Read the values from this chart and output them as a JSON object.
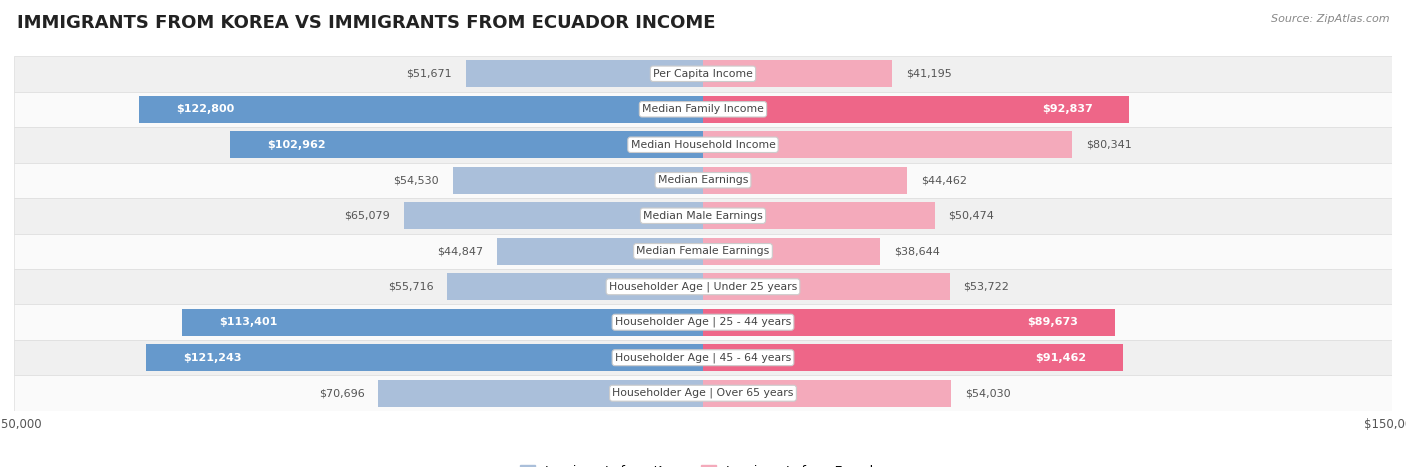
{
  "title": "IMMIGRANTS FROM KOREA VS IMMIGRANTS FROM ECUADOR INCOME",
  "source": "Source: ZipAtlas.com",
  "categories": [
    "Per Capita Income",
    "Median Family Income",
    "Median Household Income",
    "Median Earnings",
    "Median Male Earnings",
    "Median Female Earnings",
    "Householder Age | Under 25 years",
    "Householder Age | 25 - 44 years",
    "Householder Age | 45 - 64 years",
    "Householder Age | Over 65 years"
  ],
  "korea_values": [
    51671,
    122800,
    102962,
    54530,
    65079,
    44847,
    55716,
    113401,
    121243,
    70696
  ],
  "ecuador_values": [
    41195,
    92837,
    80341,
    44462,
    50474,
    38644,
    53722,
    89673,
    91462,
    54030
  ],
  "korea_color_large": "#6699CC",
  "korea_color_small": "#AABFDA",
  "ecuador_color_large": "#EE6688",
  "ecuador_color_small": "#F4AABB",
  "korea_label": "Immigrants from Korea",
  "ecuador_label": "Immigrants from Ecuador",
  "max_value": 150000,
  "row_bg_even": "#f0f0f0",
  "row_bg_odd": "#fafafa",
  "title_fontsize": 13,
  "value_fontsize": 8,
  "cat_fontsize": 7.8,
  "legend_fontsize": 9,
  "source_fontsize": 8,
  "korea_inside_threshold": 100000,
  "ecuador_inside_threshold": 88000
}
